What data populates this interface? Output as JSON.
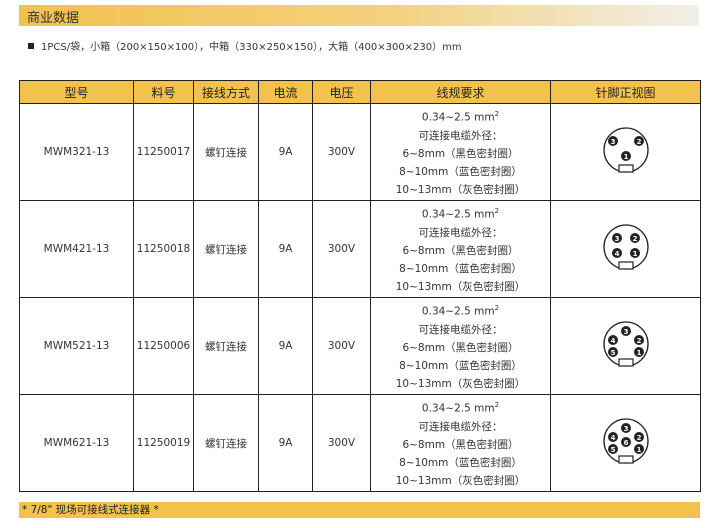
{
  "section_title": "商业数据",
  "packaging": "1PCS/袋，小箱（200×150×100），中箱（330×250×150），大箱（400×300×230）mm",
  "columns": [
    "型号",
    "料号",
    "接线方式",
    "电流",
    "电压",
    "线规要求",
    "针脚正视图"
  ],
  "rows": [
    {
      "model": "MWM321-13",
      "part": "11250017",
      "wiring": "螺钉连接",
      "current": "9A",
      "voltage": "300V",
      "pins": 3
    },
    {
      "model": "MWM421-13",
      "part": "11250018",
      "wiring": "螺钉连接",
      "current": "9A",
      "voltage": "300V",
      "pins": 4
    },
    {
      "model": "MWM521-13",
      "part": "11250006",
      "wiring": "螺钉连接",
      "current": "9A",
      "voltage": "300V",
      "pins": 5
    },
    {
      "model": "MWM621-13",
      "part": "11250019",
      "wiring": "螺钉连接",
      "current": "9A",
      "voltage": "300V",
      "pins": 6
    }
  ],
  "wire_spec": {
    "gauge": "0.34~2.5 mm",
    "gauge_sup": "2",
    "lines": [
      "可连接电缆外径：",
      "6~8mm（黑色密封圈）",
      "8~10mm（蓝色密封圈）",
      "10~13mm（灰色密封圈）"
    ]
  },
  "footer": "* 7/8\" 现场可接线式连接器 *",
  "colors": {
    "accent": "#f2c14e",
    "border": "#222222"
  }
}
